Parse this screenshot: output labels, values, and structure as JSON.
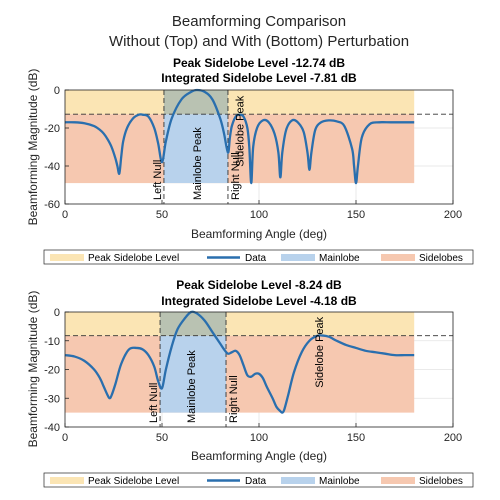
{
  "figure": {
    "suptitle_line1": "Beamforming Comparison",
    "suptitle_line2": "Without (Top) and With (Bottom) Perturbation"
  },
  "colors": {
    "peak_band": "#fbe5b4",
    "mainlobe": "#b8d2ec",
    "sidelobes": "#f6c8b0",
    "data_line": "#2a6fae",
    "overlap": "#b9c2b2"
  },
  "chart_data": [
    {
      "type": "line",
      "title_line1": "Peak Sidelobe Level -12.74 dB",
      "title_line2": "Integrated Sidelobe Level -7.81 dB",
      "xlabel": "Beamforming Angle (deg)",
      "ylabel": "Beamforming Magnitude (dB)",
      "xlim": [
        0,
        200
      ],
      "ylim": [
        -60,
        0
      ],
      "xticks": [
        0,
        50,
        100,
        150,
        200
      ],
      "yticks": [
        -60,
        -40,
        -20,
        0
      ],
      "grid": true,
      "peak_sidelobe_level": -12.74,
      "null_floor": -49,
      "data_range": [
        0,
        180
      ],
      "left_null": 51,
      "right_null": 84,
      "sidelobe_peak": 90,
      "annotations": {
        "left_null": "Left Null",
        "mainlobe_peak": "Mainlobe Peak",
        "right_null": "Right Null",
        "sidelobe_peak": "Sidelobe Peak"
      },
      "series": [
        {
          "name": "Data",
          "x": [
            0,
            5,
            10,
            15,
            18,
            20,
            22,
            24,
            26,
            27,
            28,
            29,
            30,
            32,
            35,
            38,
            40,
            43,
            46,
            48,
            50,
            52,
            55,
            60,
            65,
            68,
            72,
            76,
            80,
            82,
            84,
            85,
            86,
            88,
            90,
            92,
            94,
            95,
            96,
            97,
            99,
            102,
            105,
            108,
            110,
            111,
            112,
            114,
            117,
            120,
            123,
            125,
            126,
            127,
            129,
            132,
            136,
            140,
            144,
            148,
            149,
            150,
            151,
            153,
            157,
            162,
            168,
            175,
            180
          ],
          "y": [
            -17,
            -17,
            -17.5,
            -19,
            -21,
            -23,
            -26,
            -30,
            -36,
            -40,
            -44,
            -35,
            -27,
            -20,
            -15,
            -13,
            -13,
            -14,
            -20,
            -28,
            -38,
            -27,
            -15,
            -5,
            -1,
            0,
            -1,
            -5,
            -15,
            -23,
            -33,
            -25,
            -19,
            -14,
            -13,
            -14,
            -20,
            -30,
            -49,
            -30,
            -20,
            -16,
            -17,
            -23,
            -33,
            -46,
            -33,
            -21,
            -16,
            -17,
            -22,
            -33,
            -42,
            -33,
            -21,
            -17,
            -16,
            -16.5,
            -19,
            -31,
            -40,
            -49,
            -40,
            -25,
            -18,
            -17,
            -17,
            -17,
            -17
          ]
        }
      ],
      "legend": {
        "entries": [
          "Peak Sidelobe Level",
          "Data",
          "Mainlobe",
          "Sidelobes"
        ],
        "placement": "below"
      }
    },
    {
      "type": "line",
      "title_line1": "Peak Sidelobe Level -8.24 dB",
      "title_line2": "Integrated Sidelobe Level -4.18 dB",
      "xlabel": "Beamforming Angle (deg)",
      "ylabel": "Beamforming Magnitude (dB)",
      "xlim": [
        0,
        200
      ],
      "ylim": [
        -40,
        0
      ],
      "xticks": [
        0,
        50,
        100,
        150,
        200
      ],
      "yticks": [
        -40,
        -30,
        -20,
        -10,
        0
      ],
      "grid": true,
      "peak_sidelobe_level": -8.24,
      "null_floor": -35,
      "data_range": [
        0,
        180
      ],
      "left_null": 49,
      "right_null": 83,
      "sidelobe_peak": 131,
      "annotations": {
        "left_null": "Left Null",
        "mainlobe_peak": "Mainlobe Peak",
        "right_null": "Right Null",
        "sidelobe_peak": "Sidelobe Peak"
      },
      "series": [
        {
          "name": "Data",
          "x": [
            0,
            5,
            10,
            15,
            18,
            20,
            22,
            23,
            24,
            26,
            29,
            33,
            37,
            40,
            43,
            46,
            48,
            50,
            52,
            55,
            58,
            62,
            65,
            68,
            72,
            76,
            80,
            82,
            84,
            86,
            88,
            90,
            92,
            94,
            96,
            98,
            100,
            102,
            104,
            107,
            109,
            111,
            112,
            113,
            115,
            118,
            122,
            126,
            130,
            133,
            136,
            140,
            145,
            150,
            155,
            160,
            165,
            170,
            175,
            180
          ],
          "y": [
            -15,
            -15.5,
            -17,
            -20,
            -23,
            -26,
            -29,
            -30,
            -29,
            -25,
            -18,
            -13,
            -12.5,
            -13,
            -15,
            -19,
            -24,
            -26.5,
            -20,
            -12,
            -6,
            -2,
            0,
            -0.5,
            -3,
            -7,
            -11,
            -13,
            -14.5,
            -14,
            -13.5,
            -15,
            -18.5,
            -22,
            -22.5,
            -21.5,
            -21.5,
            -23,
            -26,
            -30,
            -33,
            -34.5,
            -35,
            -34,
            -29,
            -21,
            -14,
            -10,
            -8.3,
            -8.2,
            -8.6,
            -10,
            -11.5,
            -12.5,
            -13.5,
            -14,
            -14.5,
            -15,
            -15,
            -15
          ]
        }
      ],
      "legend": {
        "entries": [
          "Peak Sidelobe Level",
          "Data",
          "Mainlobe",
          "Sidelobes"
        ],
        "placement": "below"
      }
    }
  ]
}
